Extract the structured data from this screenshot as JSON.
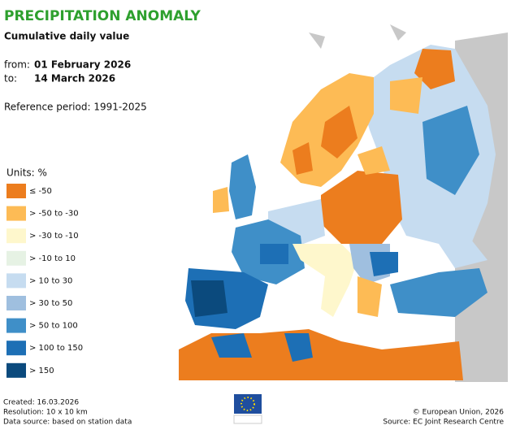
{
  "header": {
    "title": "PRECIPITATION ANOMALY",
    "subtitle": "Cumulative daily value"
  },
  "period": {
    "from_label": "from:",
    "from": "01 February 2026",
    "to_label": "to:",
    "to": "14 March 2026",
    "reference": "Reference period: 1991-2025"
  },
  "legend": {
    "title": "Units: %",
    "items": [
      {
        "label": "≤ -50",
        "color": "#ec7d1e"
      },
      {
        "label": "> -50 to -30",
        "color": "#fdbb55"
      },
      {
        "label": "> -30 to -10",
        "color": "#fef7cc"
      },
      {
        "label": "> -10 to 10",
        "color": "#e6f2e4"
      },
      {
        "label": "> 10 to 30",
        "color": "#c6dcf0"
      },
      {
        "label": "> 30 to 50",
        "color": "#9fbfdf"
      },
      {
        "label": "> 50 to 100",
        "color": "#3f8fc8"
      },
      {
        "label": "> 100 to 150",
        "color": "#1d6fb5"
      },
      {
        "label": "> 150",
        "color": "#0b4a7d"
      }
    ]
  },
  "footer": {
    "created": "Created: 16.03.2026",
    "resolution": "Resolution: 10 x 10 km",
    "source": "Data source: based on station data",
    "copyright": "© European Union, 2026",
    "jrc": "Source: EC Joint Research Centre"
  }
}
